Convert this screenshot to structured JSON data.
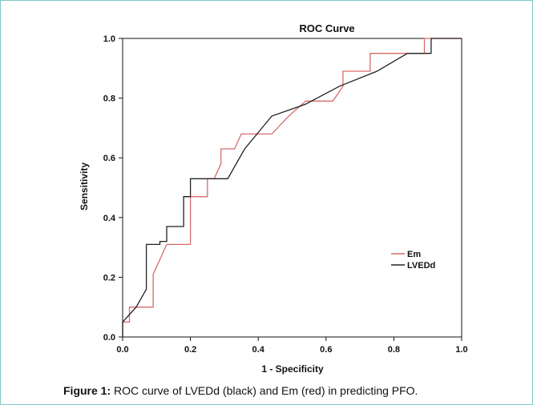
{
  "caption": {
    "label": "Figure 1:",
    "text": "ROC curve of LVEDd (black) and Em (red) in predicting PFO."
  },
  "chart_data": {
    "type": "line",
    "title": "ROC Curve",
    "xlabel": "1 - Specificity",
    "ylabel": "Sensitivity",
    "xlim": [
      0,
      1
    ],
    "ylim": [
      0,
      1
    ],
    "xticks": [
      "0.0",
      "0.2",
      "0.4",
      "0.6",
      "0.8",
      "1.0"
    ],
    "yticks": [
      "0.0",
      "0.2",
      "0.4",
      "0.6",
      "0.8",
      "1.0"
    ],
    "grid": false,
    "legend_position": "bottom-right",
    "series": [
      {
        "name": "Em",
        "color": "#d96b6b",
        "x": [
          0,
          0,
          0.02,
          0.02,
          0.09,
          0.09,
          0.13,
          0.2,
          0.2,
          0.25,
          0.25,
          0.27,
          0.29,
          0.29,
          0.33,
          0.35,
          0.35,
          0.4,
          0.44,
          0.49,
          0.54,
          0.62,
          0.65,
          0.65,
          0.73,
          0.73,
          0.82,
          0.89,
          0.89,
          1.0
        ],
        "y": [
          0,
          0.05,
          0.05,
          0.1,
          0.1,
          0.21,
          0.31,
          0.31,
          0.47,
          0.47,
          0.53,
          0.53,
          0.58,
          0.63,
          0.63,
          0.68,
          0.68,
          0.68,
          0.68,
          0.74,
          0.79,
          0.79,
          0.84,
          0.89,
          0.89,
          0.95,
          0.95,
          0.95,
          1.0,
          1.0
        ]
      },
      {
        "name": "LVEDd",
        "color": "#222222",
        "x": [
          0,
          0,
          0.04,
          0.07,
          0.07,
          0.11,
          0.11,
          0.13,
          0.13,
          0.18,
          0.18,
          0.2,
          0.2,
          0.31,
          0.31,
          0.36,
          0.44,
          0.54,
          0.64,
          0.75,
          0.84,
          0.91,
          0.91,
          1.0
        ],
        "y": [
          0,
          0.05,
          0.1,
          0.16,
          0.31,
          0.31,
          0.32,
          0.32,
          0.37,
          0.37,
          0.47,
          0.47,
          0.53,
          0.53,
          0.53,
          0.63,
          0.74,
          0.78,
          0.84,
          0.89,
          0.95,
          0.95,
          1.0,
          1.0
        ]
      }
    ]
  }
}
